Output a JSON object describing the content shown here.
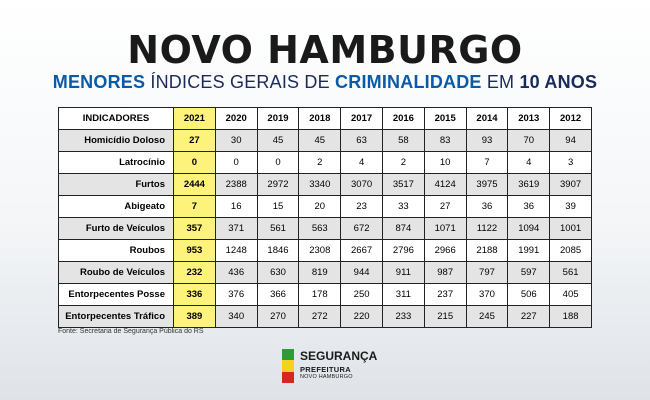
{
  "header": {
    "title": "NOVO HAMBURGO",
    "subtitle": {
      "part1": "MENORES",
      "part2": " ÍNDICES GERAIS DE ",
      "part3": "CRIMINALIDADE",
      "part4": " EM ",
      "part5": "10 ANOS"
    }
  },
  "table": {
    "headers": [
      "INDICADORES",
      "2021",
      "2020",
      "2019",
      "2018",
      "2017",
      "2016",
      "2015",
      "2014",
      "2013",
      "2012"
    ],
    "rows": [
      [
        "Homicídio Doloso",
        "27",
        "30",
        "45",
        "45",
        "63",
        "58",
        "83",
        "93",
        "70",
        "94"
      ],
      [
        "Latrocínio",
        "0",
        "0",
        "0",
        "2",
        "4",
        "2",
        "10",
        "7",
        "4",
        "3"
      ],
      [
        "Furtos",
        "2444",
        "2388",
        "2972",
        "3340",
        "3070",
        "3517",
        "4124",
        "3975",
        "3619",
        "3907"
      ],
      [
        "Abigeato",
        "7",
        "16",
        "15",
        "20",
        "23",
        "33",
        "27",
        "36",
        "36",
        "39"
      ],
      [
        "Furto de Veículos",
        "357",
        "371",
        "561",
        "563",
        "672",
        "874",
        "1071",
        "1122",
        "1094",
        "1001"
      ],
      [
        "Roubos",
        "953",
        "1248",
        "1846",
        "2308",
        "2667",
        "2796",
        "2966",
        "2188",
        "1991",
        "2085"
      ],
      [
        "Roubo de Veículos",
        "232",
        "436",
        "630",
        "819",
        "944",
        "911",
        "987",
        "797",
        "597",
        "561"
      ],
      [
        "Entorpecentes Posse",
        "336",
        "376",
        "366",
        "178",
        "250",
        "311",
        "237",
        "370",
        "506",
        "405"
      ],
      [
        "Entorpecentes Tráfico",
        "389",
        "340",
        "270",
        "272",
        "220",
        "233",
        "215",
        "245",
        "227",
        "188"
      ]
    ]
  },
  "source": "Fonte: Secretaria de Segurança Pública do RS",
  "logo": {
    "line1": "SEGURANÇA",
    "line2": "PREFEITURA",
    "line3": "NOVO HAMBURGO",
    "colors": [
      "#2e9a3a",
      "#f6d21c",
      "#d8261f"
    ]
  }
}
